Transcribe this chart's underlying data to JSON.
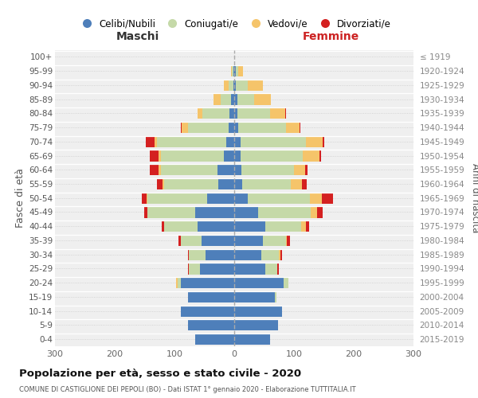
{
  "age_groups": [
    "0-4",
    "5-9",
    "10-14",
    "15-19",
    "20-24",
    "25-29",
    "30-34",
    "35-39",
    "40-44",
    "45-49",
    "50-54",
    "55-59",
    "60-64",
    "65-69",
    "70-74",
    "75-79",
    "80-84",
    "85-89",
    "90-94",
    "95-99",
    "100+"
  ],
  "birth_years": [
    "2015-2019",
    "2010-2014",
    "2005-2009",
    "2000-2004",
    "1995-1999",
    "1990-1994",
    "1985-1989",
    "1980-1984",
    "1975-1979",
    "1970-1974",
    "1965-1969",
    "1960-1964",
    "1955-1959",
    "1950-1954",
    "1945-1949",
    "1940-1944",
    "1935-1939",
    "1930-1934",
    "1925-1929",
    "1920-1924",
    "≤ 1919"
  ],
  "maschi_celibi": [
    65,
    77,
    90,
    78,
    90,
    58,
    48,
    55,
    62,
    65,
    45,
    27,
    28,
    18,
    14,
    10,
    8,
    5,
    2,
    1,
    0
  ],
  "maschi_coniugati": [
    0,
    0,
    0,
    0,
    5,
    18,
    28,
    35,
    55,
    80,
    100,
    90,
    95,
    105,
    115,
    68,
    45,
    18,
    8,
    3,
    0
  ],
  "maschi_vedovi": [
    0,
    0,
    0,
    0,
    2,
    0,
    0,
    0,
    0,
    1,
    2,
    3,
    4,
    4,
    4,
    10,
    8,
    12,
    8,
    2,
    0
  ],
  "maschi_divorziati": [
    0,
    0,
    0,
    0,
    0,
    2,
    2,
    3,
    5,
    5,
    8,
    10,
    15,
    15,
    15,
    2,
    0,
    0,
    0,
    0,
    0
  ],
  "femmine_nubili": [
    60,
    73,
    80,
    68,
    82,
    52,
    45,
    48,
    52,
    40,
    22,
    13,
    12,
    10,
    10,
    7,
    5,
    5,
    3,
    2,
    0
  ],
  "femmine_coniugate": [
    0,
    0,
    0,
    2,
    8,
    20,
    30,
    38,
    60,
    88,
    105,
    82,
    88,
    105,
    110,
    80,
    55,
    28,
    20,
    5,
    0
  ],
  "femmine_vedove": [
    0,
    0,
    0,
    0,
    0,
    0,
    2,
    2,
    8,
    10,
    20,
    18,
    18,
    28,
    28,
    22,
    25,
    28,
    25,
    8,
    0
  ],
  "femmine_divorziate": [
    0,
    0,
    0,
    0,
    0,
    2,
    3,
    5,
    5,
    10,
    18,
    8,
    5,
    2,
    2,
    2,
    2,
    0,
    0,
    0,
    0
  ],
  "col_celibi": "#4e7fba",
  "col_coniugati": "#c5d9a8",
  "col_vedovi": "#f5c46a",
  "col_divorziati": "#d42020",
  "legend_labels": [
    "Celibi/Nubili",
    "Coniugati/e",
    "Vedovi/e",
    "Divorziati/e"
  ],
  "title": "Popolazione per età, sesso e stato civile - 2020",
  "subtitle": "COMUNE DI CASTIGLIONE DEI PEPOLI (BO) - Dati ISTAT 1° gennaio 2020 - Elaborazione TUTTITALIA.IT",
  "maschi_label": "Maschi",
  "femmine_label": "Femmine",
  "ylabel_left": "Fasce di età",
  "ylabel_right": "Anni di nascita",
  "xlim": 300,
  "bg_color": "#efefef"
}
